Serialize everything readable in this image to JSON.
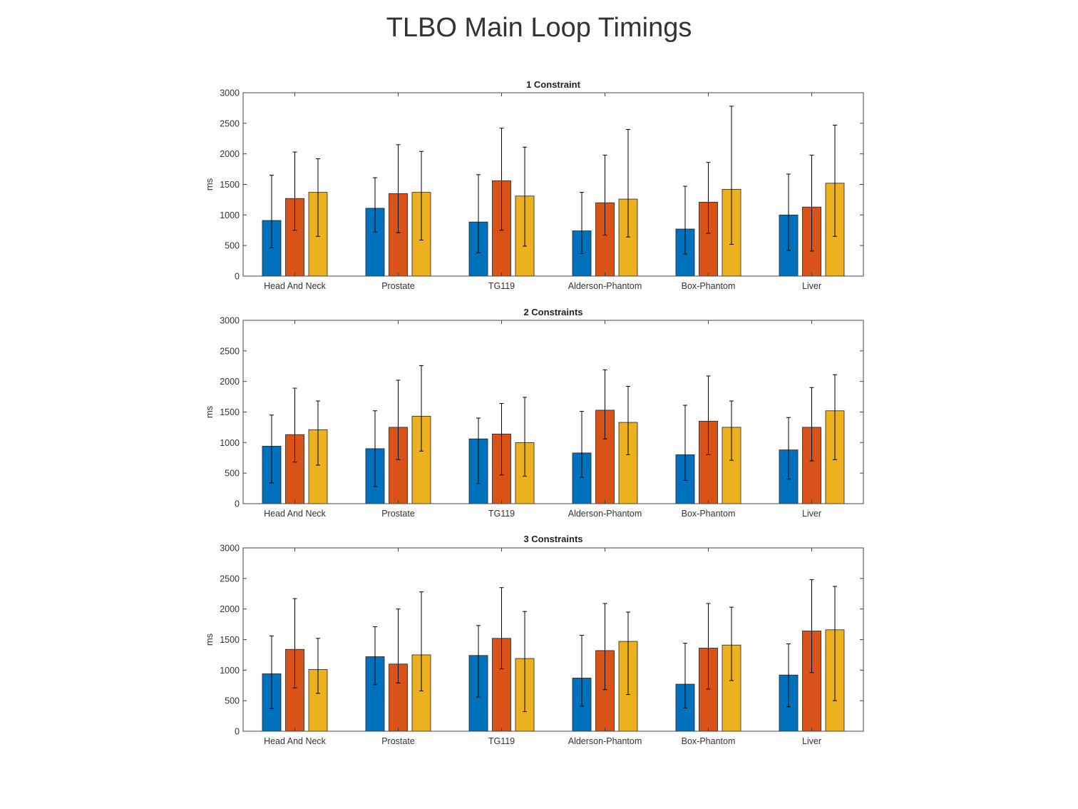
{
  "page": {
    "title": "TLBO Main Loop Timings"
  },
  "chart_data": [
    {
      "type": "bar",
      "title": "1 Constraint",
      "ylabel": "ms",
      "xlabel": "",
      "ylim": [
        0,
        3000
      ],
      "yticks": [
        0,
        500,
        1000,
        1500,
        2000,
        2500,
        3000
      ],
      "grid": false,
      "categories": [
        "Head And Neck",
        "Prostate",
        "TG119",
        "Alderson-Phantom",
        "Box-Phantom",
        "Liver"
      ],
      "series": [
        {
          "color": "#0072BD",
          "values": [
            910,
            1110,
            885,
            740,
            770,
            1000
          ],
          "error_low": [
            460,
            720,
            380,
            370,
            360,
            420
          ],
          "error_high": [
            1650,
            1610,
            1660,
            1370,
            1470,
            1670
          ]
        },
        {
          "color": "#D95319",
          "values": [
            1270,
            1350,
            1560,
            1200,
            1210,
            1130
          ],
          "error_low": [
            750,
            710,
            750,
            670,
            700,
            410
          ],
          "error_high": [
            2030,
            2150,
            2420,
            1980,
            1860,
            1980
          ]
        },
        {
          "color": "#EDB120",
          "values": [
            1370,
            1370,
            1310,
            1260,
            1420,
            1520
          ],
          "error_low": [
            650,
            590,
            490,
            640,
            520,
            650
          ],
          "error_high": [
            1920,
            2040,
            2110,
            2400,
            2780,
            2470
          ]
        }
      ]
    },
    {
      "type": "bar",
      "title": "2 Constraints",
      "ylabel": "ms",
      "xlabel": "",
      "ylim": [
        0,
        3000
      ],
      "yticks": [
        0,
        500,
        1000,
        1500,
        2000,
        2500,
        3000
      ],
      "grid": false,
      "categories": [
        "Head And Neck",
        "Prostate",
        "TG119",
        "Alderson-Phantom",
        "Box-Phantom",
        "Liver"
      ],
      "series": [
        {
          "color": "#0072BD",
          "values": [
            940,
            900,
            1060,
            830,
            800,
            880
          ],
          "error_low": [
            340,
            280,
            330,
            430,
            380,
            400
          ],
          "error_high": [
            1450,
            1520,
            1400,
            1510,
            1610,
            1410
          ]
        },
        {
          "color": "#D95319",
          "values": [
            1130,
            1250,
            1140,
            1530,
            1350,
            1250
          ],
          "error_low": [
            680,
            720,
            470,
            1060,
            800,
            700
          ],
          "error_high": [
            1890,
            2020,
            1640,
            2190,
            2090,
            1900
          ]
        },
        {
          "color": "#EDB120",
          "values": [
            1210,
            1430,
            1000,
            1330,
            1250,
            1520
          ],
          "error_low": [
            630,
            860,
            450,
            800,
            710,
            720
          ],
          "error_high": [
            1680,
            2260,
            1740,
            1920,
            1680,
            2110
          ]
        }
      ]
    },
    {
      "type": "bar",
      "title": "3 Constraints",
      "ylabel": "ms",
      "xlabel": "",
      "ylim": [
        0,
        3000
      ],
      "yticks": [
        0,
        500,
        1000,
        1500,
        2000,
        2500,
        3000
      ],
      "grid": false,
      "categories": [
        "Head And Neck",
        "Prostate",
        "TG119",
        "Alderson-Phantom",
        "Box-Phantom",
        "Liver"
      ],
      "series": [
        {
          "color": "#0072BD",
          "values": [
            940,
            1220,
            1240,
            870,
            770,
            920
          ],
          "error_low": [
            370,
            760,
            560,
            410,
            380,
            400
          ],
          "error_high": [
            1560,
            1710,
            1730,
            1570,
            1440,
            1430
          ]
        },
        {
          "color": "#D95319",
          "values": [
            1340,
            1100,
            1520,
            1320,
            1360,
            1640
          ],
          "error_low": [
            710,
            790,
            1020,
            680,
            690,
            960
          ],
          "error_high": [
            2170,
            2000,
            2350,
            2090,
            2090,
            2480
          ]
        },
        {
          "color": "#EDB120",
          "values": [
            1010,
            1250,
            1190,
            1470,
            1410,
            1660
          ],
          "error_low": [
            620,
            660,
            320,
            600,
            830,
            500
          ],
          "error_high": [
            1520,
            2280,
            1960,
            1950,
            2030,
            2370
          ]
        }
      ]
    }
  ]
}
